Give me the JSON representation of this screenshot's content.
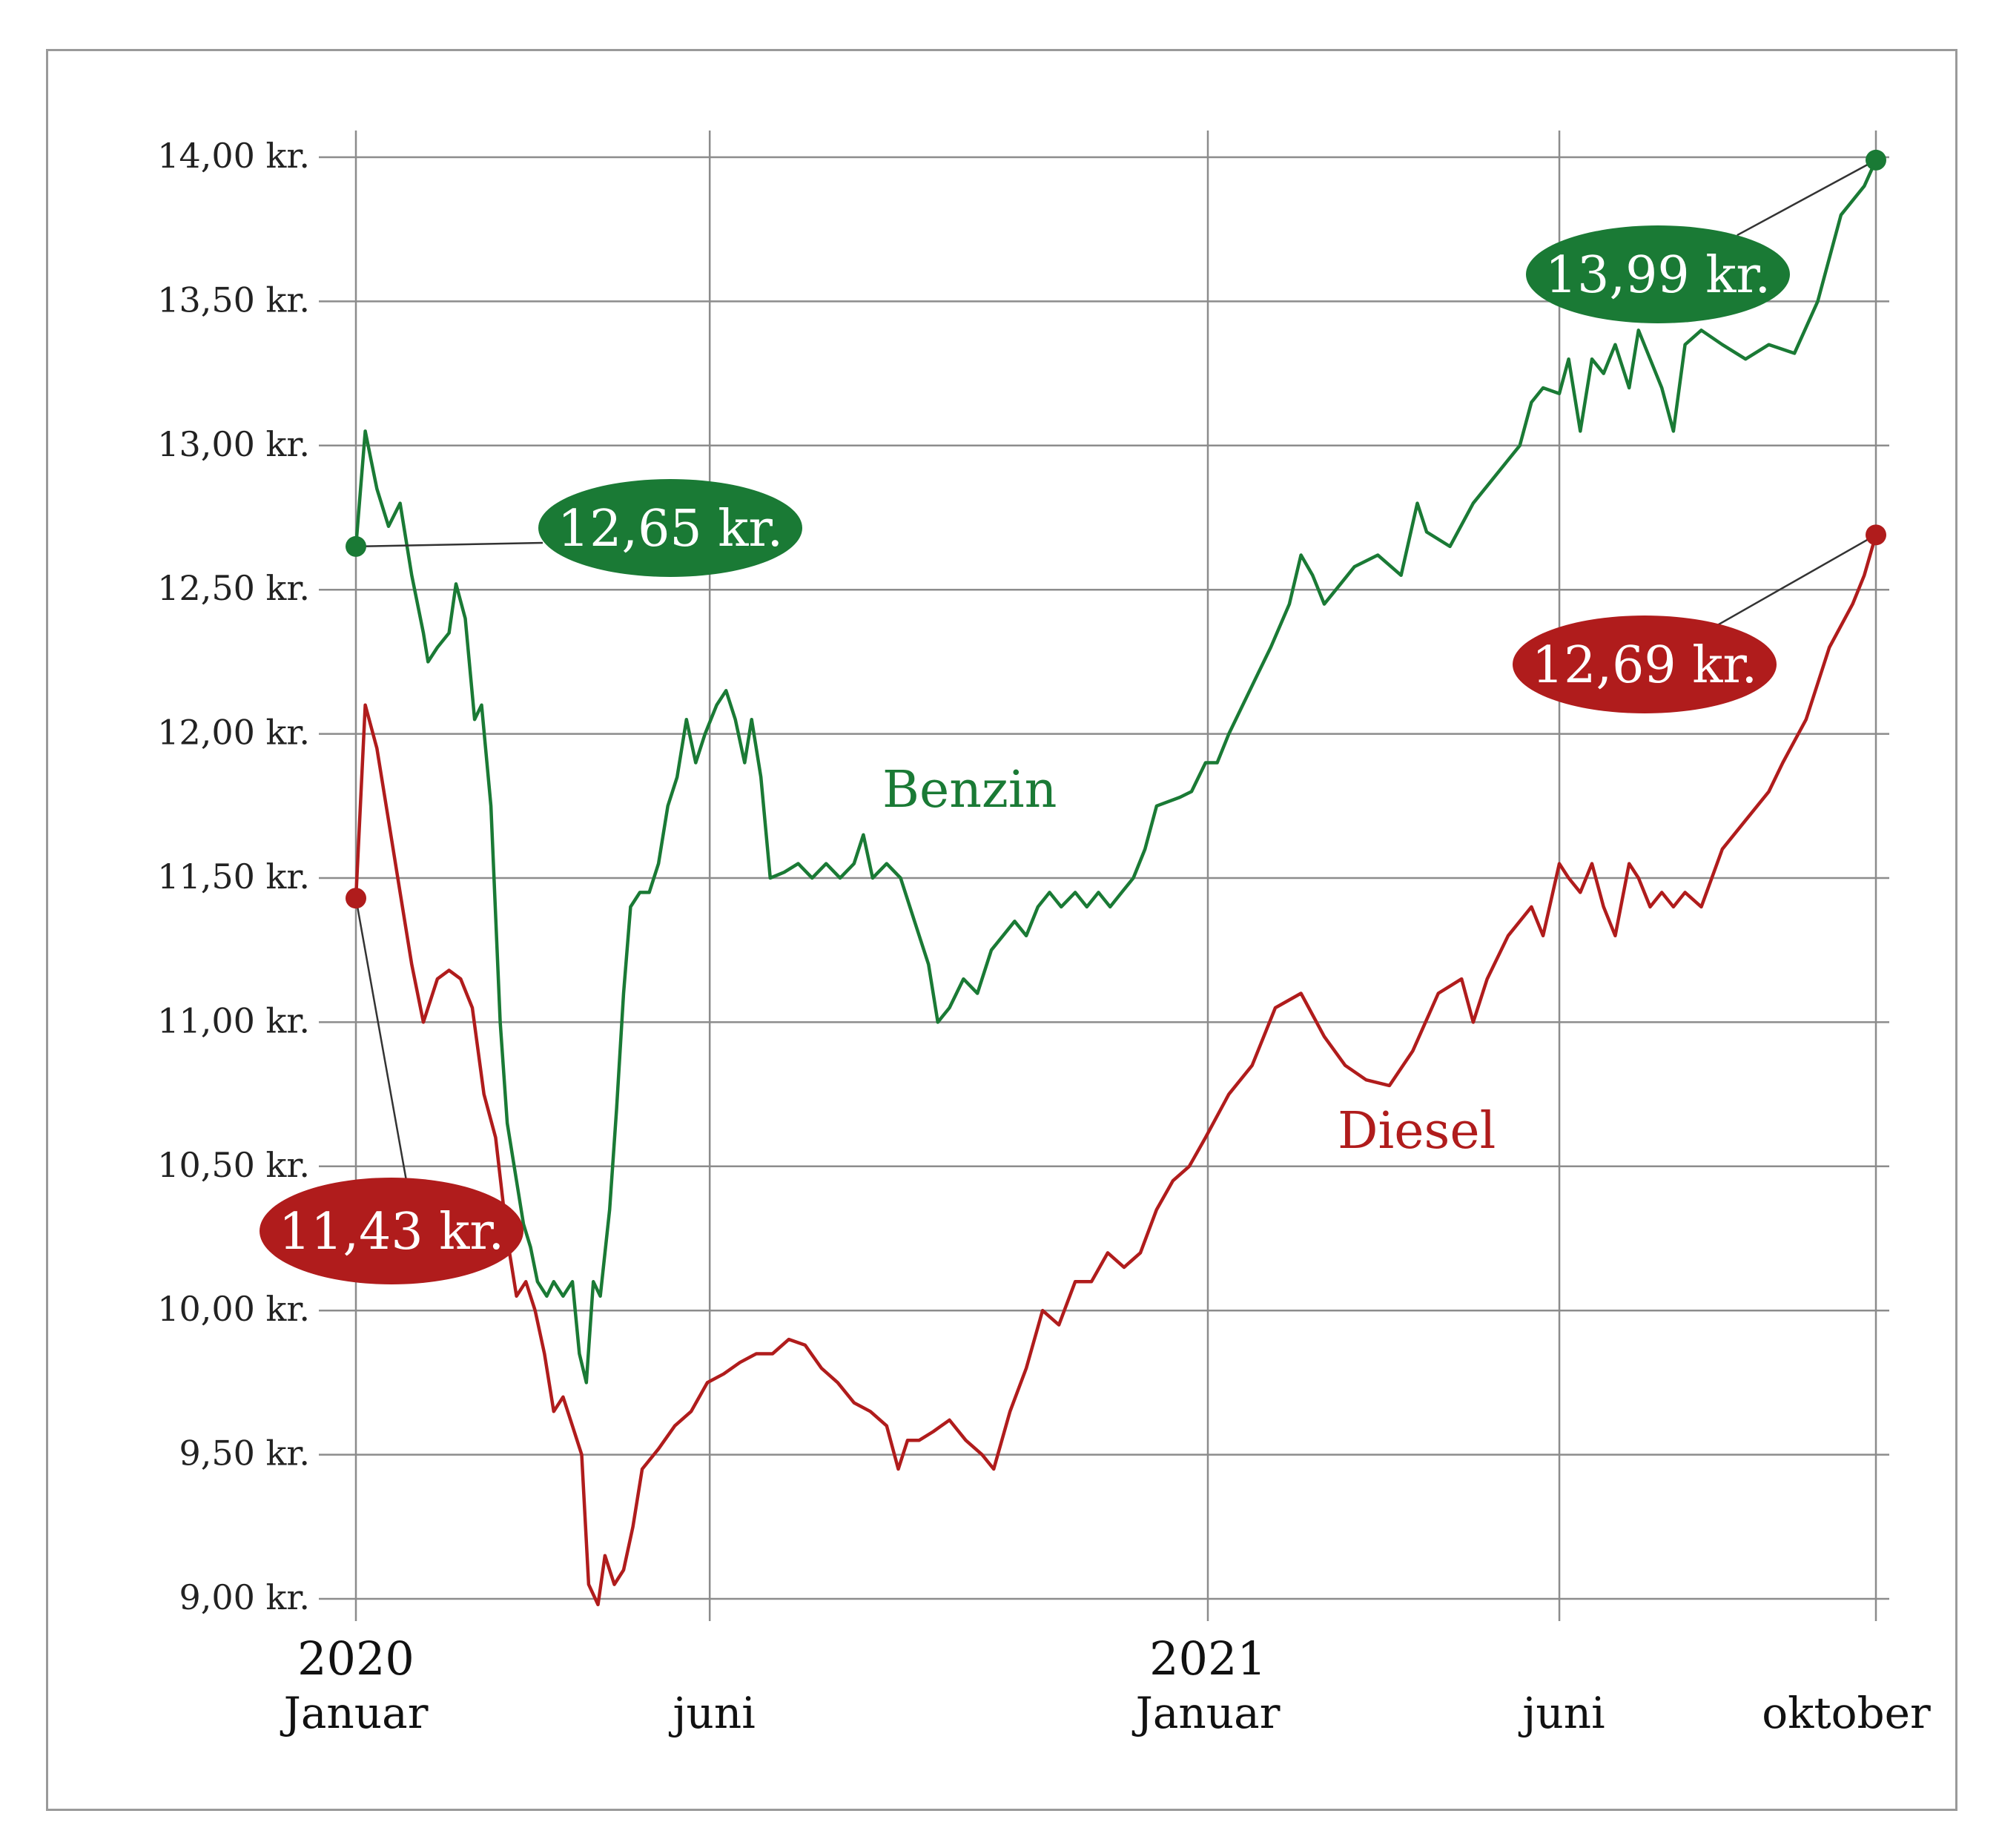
{
  "chart_data": {
    "type": "line",
    "ylim": [
      9.0,
      14.0
    ],
    "yticks": [
      {
        "value": 14.0,
        "label": "14,00 kr."
      },
      {
        "value": 13.5,
        "label": "13,50 kr."
      },
      {
        "value": 13.0,
        "label": "13,00 kr."
      },
      {
        "value": 12.5,
        "label": "12,50 kr."
      },
      {
        "value": 12.0,
        "label": "12,00 kr."
      },
      {
        "value": 11.5,
        "label": "11,50 kr."
      },
      {
        "value": 11.0,
        "label": "11,00 kr."
      },
      {
        "value": 10.5,
        "label": "10,50 kr."
      },
      {
        "value": 10.0,
        "label": "10,00 kr."
      },
      {
        "value": 9.5,
        "label": "9,50 kr."
      },
      {
        "value": 9.0,
        "label": "9,00 kr."
      }
    ],
    "xlim": [
      "2020-01-01",
      "2021-10-15"
    ],
    "xticks": [
      {
        "date": "2020-01-01",
        "year": "2020",
        "month": "Januar"
      },
      {
        "date": "2020-06-01",
        "year": "",
        "month": "juni"
      },
      {
        "date": "2021-01-01",
        "year": "2021",
        "month": "Januar"
      },
      {
        "date": "2021-06-01",
        "year": "",
        "month": "juni"
      },
      {
        "date": "2021-10-15",
        "year": "",
        "month": "oktober"
      }
    ],
    "grid": true,
    "series": [
      {
        "name": "Benzin",
        "color": "#1a7a35",
        "points": [
          [
            "2020-01-01",
            12.65
          ],
          [
            "2020-01-05",
            13.05
          ],
          [
            "2020-01-10",
            12.85
          ],
          [
            "2020-01-15",
            12.72
          ],
          [
            "2020-01-20",
            12.8
          ],
          [
            "2020-01-25",
            12.55
          ],
          [
            "2020-01-30",
            12.35
          ],
          [
            "2020-02-01",
            12.25
          ],
          [
            "2020-02-05",
            12.3
          ],
          [
            "2020-02-10",
            12.35
          ],
          [
            "2020-02-13",
            12.52
          ],
          [
            "2020-02-17",
            12.4
          ],
          [
            "2020-02-21",
            12.05
          ],
          [
            "2020-02-24",
            12.1
          ],
          [
            "2020-02-28",
            11.75
          ],
          [
            "2020-03-03",
            11.0
          ],
          [
            "2020-03-06",
            10.65
          ],
          [
            "2020-03-10",
            10.45
          ],
          [
            "2020-03-13",
            10.3
          ],
          [
            "2020-03-16",
            10.22
          ],
          [
            "2020-03-19",
            10.1
          ],
          [
            "2020-03-23",
            10.05
          ],
          [
            "2020-03-26",
            10.1
          ],
          [
            "2020-03-30",
            10.05
          ],
          [
            "2020-04-03",
            10.1
          ],
          [
            "2020-04-06",
            9.85
          ],
          [
            "2020-04-09",
            9.75
          ],
          [
            "2020-04-12",
            10.1
          ],
          [
            "2020-04-15",
            10.05
          ],
          [
            "2020-04-19",
            10.35
          ],
          [
            "2020-04-22",
            10.7
          ],
          [
            "2020-04-25",
            11.1
          ],
          [
            "2020-04-28",
            11.4
          ],
          [
            "2020-05-02",
            11.45
          ],
          [
            "2020-05-06",
            11.45
          ],
          [
            "2020-05-10",
            11.55
          ],
          [
            "2020-05-14",
            11.75
          ],
          [
            "2020-05-18",
            11.85
          ],
          [
            "2020-05-22",
            12.05
          ],
          [
            "2020-05-26",
            11.9
          ],
          [
            "2020-05-30",
            12.0
          ],
          [
            "2020-06-04",
            12.1
          ],
          [
            "2020-06-08",
            12.15
          ],
          [
            "2020-06-12",
            12.05
          ],
          [
            "2020-06-16",
            11.9
          ],
          [
            "2020-06-19",
            12.05
          ],
          [
            "2020-06-23",
            11.85
          ],
          [
            "2020-06-27",
            11.5
          ],
          [
            "2020-07-03",
            11.52
          ],
          [
            "2020-07-09",
            11.55
          ],
          [
            "2020-07-15",
            11.5
          ],
          [
            "2020-07-21",
            11.55
          ],
          [
            "2020-07-27",
            11.5
          ],
          [
            "2020-08-02",
            11.55
          ],
          [
            "2020-08-06",
            11.65
          ],
          [
            "2020-08-10",
            11.5
          ],
          [
            "2020-08-16",
            11.55
          ],
          [
            "2020-08-22",
            11.5
          ],
          [
            "2020-08-28",
            11.35
          ],
          [
            "2020-09-03",
            11.2
          ],
          [
            "2020-09-07",
            11.0
          ],
          [
            "2020-09-12",
            11.05
          ],
          [
            "2020-09-18",
            11.15
          ],
          [
            "2020-09-24",
            11.1
          ],
          [
            "2020-09-30",
            11.25
          ],
          [
            "2020-10-05",
            11.3
          ],
          [
            "2020-10-10",
            11.35
          ],
          [
            "2020-10-15",
            11.3
          ],
          [
            "2020-10-20",
            11.4
          ],
          [
            "2020-10-25",
            11.45
          ],
          [
            "2020-10-30",
            11.4
          ],
          [
            "2020-11-05",
            11.45
          ],
          [
            "2020-11-10",
            11.4
          ],
          [
            "2020-11-15",
            11.45
          ],
          [
            "2020-11-20",
            11.4
          ],
          [
            "2020-11-25",
            11.45
          ],
          [
            "2020-11-30",
            11.5
          ],
          [
            "2020-12-05",
            11.6
          ],
          [
            "2020-12-10",
            11.75
          ],
          [
            "2020-12-20",
            11.78
          ],
          [
            "2020-12-25",
            11.8
          ],
          [
            "2020-12-31",
            11.9
          ],
          [
            "2021-01-05",
            11.9
          ],
          [
            "2021-01-10",
            12.0
          ],
          [
            "2021-01-16",
            12.1
          ],
          [
            "2021-01-22",
            12.2
          ],
          [
            "2021-01-28",
            12.3
          ],
          [
            "2021-02-05",
            12.45
          ],
          [
            "2021-02-10",
            12.62
          ],
          [
            "2021-02-15",
            12.55
          ],
          [
            "2021-02-20",
            12.45
          ],
          [
            "2021-02-25",
            12.5
          ],
          [
            "2021-03-05",
            12.58
          ],
          [
            "2021-03-15",
            12.62
          ],
          [
            "2021-03-25",
            12.55
          ],
          [
            "2021-04-01",
            12.8
          ],
          [
            "2021-04-05",
            12.7
          ],
          [
            "2021-04-15",
            12.65
          ],
          [
            "2021-04-25",
            12.8
          ],
          [
            "2021-05-05",
            12.9
          ],
          [
            "2021-05-15",
            13.0
          ],
          [
            "2021-05-20",
            13.15
          ],
          [
            "2021-05-25",
            13.2
          ],
          [
            "2021-06-01",
            13.18
          ],
          [
            "2021-06-05",
            13.3
          ],
          [
            "2021-06-10",
            13.05
          ],
          [
            "2021-06-15",
            13.3
          ],
          [
            "2021-06-20",
            13.25
          ],
          [
            "2021-06-25",
            13.35
          ],
          [
            "2021-07-01",
            13.2
          ],
          [
            "2021-07-05",
            13.4
          ],
          [
            "2021-07-10",
            13.3
          ],
          [
            "2021-07-15",
            13.2
          ],
          [
            "2021-07-20",
            13.05
          ],
          [
            "2021-07-25",
            13.35
          ],
          [
            "2021-08-01",
            13.4
          ],
          [
            "2021-08-10",
            13.35
          ],
          [
            "2021-08-20",
            13.3
          ],
          [
            "2021-08-30",
            13.35
          ],
          [
            "2021-09-10",
            13.32
          ],
          [
            "2021-09-20",
            13.5
          ],
          [
            "2021-09-30",
            13.8
          ],
          [
            "2021-10-10",
            13.9
          ],
          [
            "2021-10-15",
            13.99
          ]
        ]
      },
      {
        "name": "Diesel",
        "color": "#b01c1c",
        "points": [
          [
            "2020-01-01",
            11.43
          ],
          [
            "2020-01-05",
            12.1
          ],
          [
            "2020-01-10",
            11.95
          ],
          [
            "2020-01-15",
            11.7
          ],
          [
            "2020-01-20",
            11.45
          ],
          [
            "2020-01-25",
            11.2
          ],
          [
            "2020-01-30",
            11.0
          ],
          [
            "2020-02-05",
            11.15
          ],
          [
            "2020-02-10",
            11.18
          ],
          [
            "2020-02-15",
            11.15
          ],
          [
            "2020-02-20",
            11.05
          ],
          [
            "2020-02-25",
            10.75
          ],
          [
            "2020-03-01",
            10.6
          ],
          [
            "2020-03-06",
            10.25
          ],
          [
            "2020-03-10",
            10.05
          ],
          [
            "2020-03-14",
            10.1
          ],
          [
            "2020-03-18",
            10.0
          ],
          [
            "2020-03-22",
            9.85
          ],
          [
            "2020-03-26",
            9.65
          ],
          [
            "2020-03-30",
            9.7
          ],
          [
            "2020-04-03",
            9.6
          ],
          [
            "2020-04-07",
            9.5
          ],
          [
            "2020-04-10",
            9.05
          ],
          [
            "2020-04-14",
            8.98
          ],
          [
            "2020-04-17",
            9.15
          ],
          [
            "2020-04-21",
            9.05
          ],
          [
            "2020-04-25",
            9.1
          ],
          [
            "2020-04-29",
            9.25
          ],
          [
            "2020-05-03",
            9.45
          ],
          [
            "2020-05-10",
            9.52
          ],
          [
            "2020-05-17",
            9.6
          ],
          [
            "2020-05-24",
            9.65
          ],
          [
            "2020-05-31",
            9.75
          ],
          [
            "2020-06-07",
            9.78
          ],
          [
            "2020-06-14",
            9.82
          ],
          [
            "2020-06-21",
            9.85
          ],
          [
            "2020-06-28",
            9.85
          ],
          [
            "2020-07-05",
            9.9
          ],
          [
            "2020-07-12",
            9.88
          ],
          [
            "2020-07-19",
            9.8
          ],
          [
            "2020-07-26",
            9.75
          ],
          [
            "2020-08-02",
            9.68
          ],
          [
            "2020-08-09",
            9.65
          ],
          [
            "2020-08-16",
            9.6
          ],
          [
            "2020-08-21",
            9.45
          ],
          [
            "2020-08-25",
            9.55
          ],
          [
            "2020-08-30",
            9.55
          ],
          [
            "2020-09-05",
            9.58
          ],
          [
            "2020-09-12",
            9.62
          ],
          [
            "2020-09-19",
            9.55
          ],
          [
            "2020-09-26",
            9.5
          ],
          [
            "2020-10-01",
            9.45
          ],
          [
            "2020-10-08",
            9.65
          ],
          [
            "2020-10-15",
            9.8
          ],
          [
            "2020-10-22",
            10.0
          ],
          [
            "2020-10-29",
            9.95
          ],
          [
            "2020-11-05",
            10.1
          ],
          [
            "2020-11-12",
            10.1
          ],
          [
            "2020-11-19",
            10.2
          ],
          [
            "2020-11-26",
            10.15
          ],
          [
            "2020-12-03",
            10.2
          ],
          [
            "2020-12-10",
            10.35
          ],
          [
            "2020-12-17",
            10.45
          ],
          [
            "2020-12-24",
            10.5
          ],
          [
            "2020-12-31",
            10.6
          ],
          [
            "2021-01-10",
            10.75
          ],
          [
            "2021-01-20",
            10.85
          ],
          [
            "2021-01-30",
            11.05
          ],
          [
            "2021-02-10",
            11.1
          ],
          [
            "2021-02-20",
            10.95
          ],
          [
            "2021-03-01",
            10.85
          ],
          [
            "2021-03-10",
            10.8
          ],
          [
            "2021-03-20",
            10.78
          ],
          [
            "2021-03-30",
            10.9
          ],
          [
            "2021-04-10",
            11.1
          ],
          [
            "2021-04-20",
            11.15
          ],
          [
            "2021-04-25",
            11.0
          ],
          [
            "2021-05-01",
            11.15
          ],
          [
            "2021-05-10",
            11.3
          ],
          [
            "2021-05-20",
            11.4
          ],
          [
            "2021-05-25",
            11.3
          ],
          [
            "2021-06-01",
            11.55
          ],
          [
            "2021-06-05",
            11.5
          ],
          [
            "2021-06-10",
            11.45
          ],
          [
            "2021-06-15",
            11.55
          ],
          [
            "2021-06-20",
            11.4
          ],
          [
            "2021-06-25",
            11.3
          ],
          [
            "2021-07-01",
            11.55
          ],
          [
            "2021-07-05",
            11.5
          ],
          [
            "2021-07-10",
            11.4
          ],
          [
            "2021-07-15",
            11.45
          ],
          [
            "2021-07-20",
            11.4
          ],
          [
            "2021-07-25",
            11.45
          ],
          [
            "2021-08-01",
            11.4
          ],
          [
            "2021-08-10",
            11.6
          ],
          [
            "2021-08-20",
            11.7
          ],
          [
            "2021-08-30",
            11.8
          ],
          [
            "2021-09-05",
            11.9
          ],
          [
            "2021-09-15",
            12.05
          ],
          [
            "2021-09-25",
            12.3
          ],
          [
            "2021-10-05",
            12.45
          ],
          [
            "2021-10-10",
            12.55
          ],
          [
            "2021-10-15",
            12.69
          ]
        ]
      }
    ],
    "labels": {
      "benzin": "Benzin",
      "diesel": "Diesel"
    },
    "callouts": [
      {
        "text": "12,65 kr.",
        "series": "Benzin",
        "date": "2020-01-01",
        "value": 12.65,
        "color": "#1a7a35"
      },
      {
        "text": "13,99 kr.",
        "series": "Benzin",
        "date": "2021-10-15",
        "value": 13.99,
        "color": "#1a7a35"
      },
      {
        "text": "11,43 kr.",
        "series": "Diesel",
        "date": "2020-01-01",
        "value": 11.43,
        "color": "#b01c1c"
      },
      {
        "text": "12,69 kr.",
        "series": "Diesel",
        "date": "2021-10-15",
        "value": 12.69,
        "color": "#b01c1c"
      }
    ]
  }
}
